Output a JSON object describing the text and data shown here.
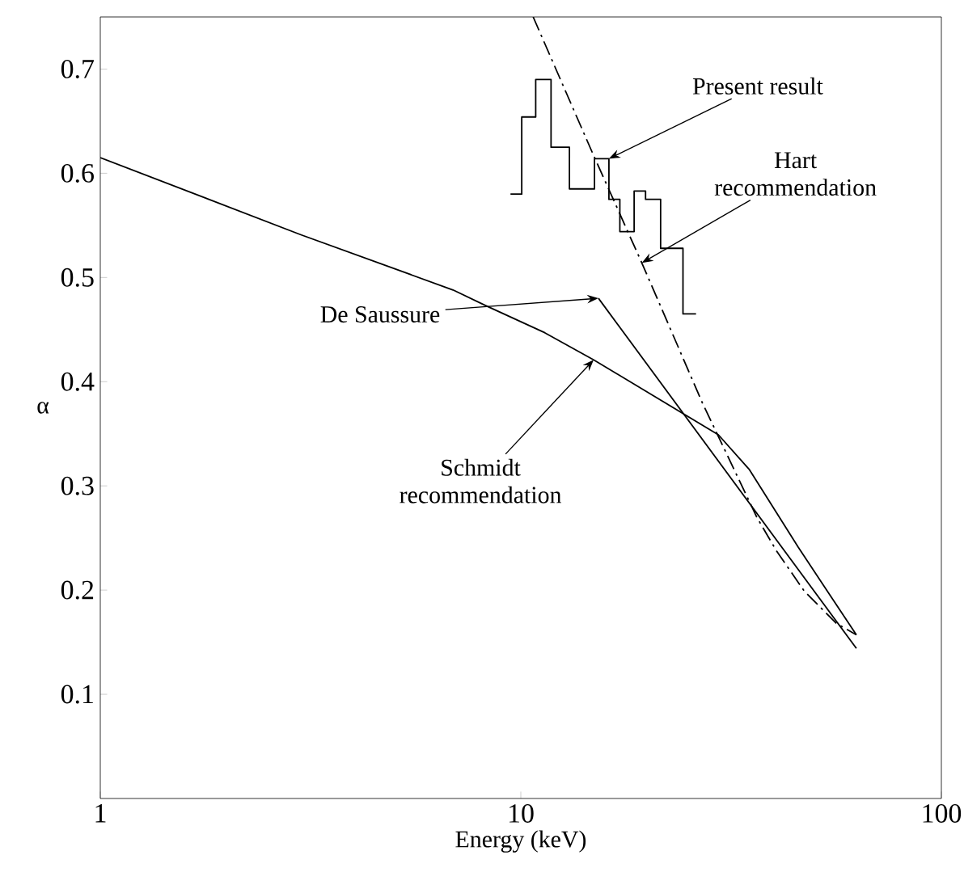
{
  "chart_data": {
    "type": "line",
    "xlabel": "Energy (keV)",
    "ylabel": "α",
    "log": "x",
    "xlim": [
      1,
      100
    ],
    "ylim": [
      0,
      0.75
    ],
    "xticks": [
      1,
      10,
      100
    ],
    "yticks": [
      0.1,
      0.2,
      0.3,
      0.4,
      0.5,
      0.6,
      0.7
    ],
    "grid": false,
    "series": [
      {
        "color": "#000000",
        "x": [
          1,
          3,
          6.9,
          8.25,
          11.4,
          14.9,
          29.5,
          34.9,
          45.7,
          62.8
        ],
        "values": [
          0.615,
          0.541,
          0.488,
          0.473,
          0.447,
          0.421,
          0.349,
          0.316,
          0.241,
          0.157
        ]
      },
      {
        "color": "#000000",
        "x": [
          15.3,
          62.8
        ],
        "values": [
          0.48,
          0.144
        ]
      },
      {
        "color": "#000000",
        "line_style": "dashdot",
        "x": [
          10.7,
          14.9,
          19.4,
          27.0,
          36.4,
          40.5,
          47.2,
          56.3,
          62.8
        ],
        "values": [
          0.75,
          0.617,
          0.514,
          0.38,
          0.27,
          0.238,
          0.199,
          0.168,
          0.157
        ]
      },
      {
        "type": "step",
        "color": "#000000",
        "x": [
          9.45,
          10.05,
          10.85,
          11.8,
          13.05,
          14.97,
          16.2,
          17.2,
          18.6,
          19.8,
          21.5,
          24.3,
          26.1
        ],
        "values": [
          0.58,
          0.654,
          0.69,
          0.625,
          0.585,
          0.614,
          0.575,
          0.544,
          0.583,
          0.575,
          0.528,
          0.465,
          0.465
        ]
      }
    ],
    "annotations": [
      {
        "text": "Present result",
        "x": 16.2,
        "y": 0.614
      },
      {
        "text": "Hart recommendation",
        "x": 19.4,
        "y": 0.514
      },
      {
        "text": "De Saussure",
        "x": 15.3,
        "y": 0.48
      },
      {
        "text": "Schmidt recommendation",
        "x": 14.9,
        "y": 0.421
      }
    ]
  }
}
